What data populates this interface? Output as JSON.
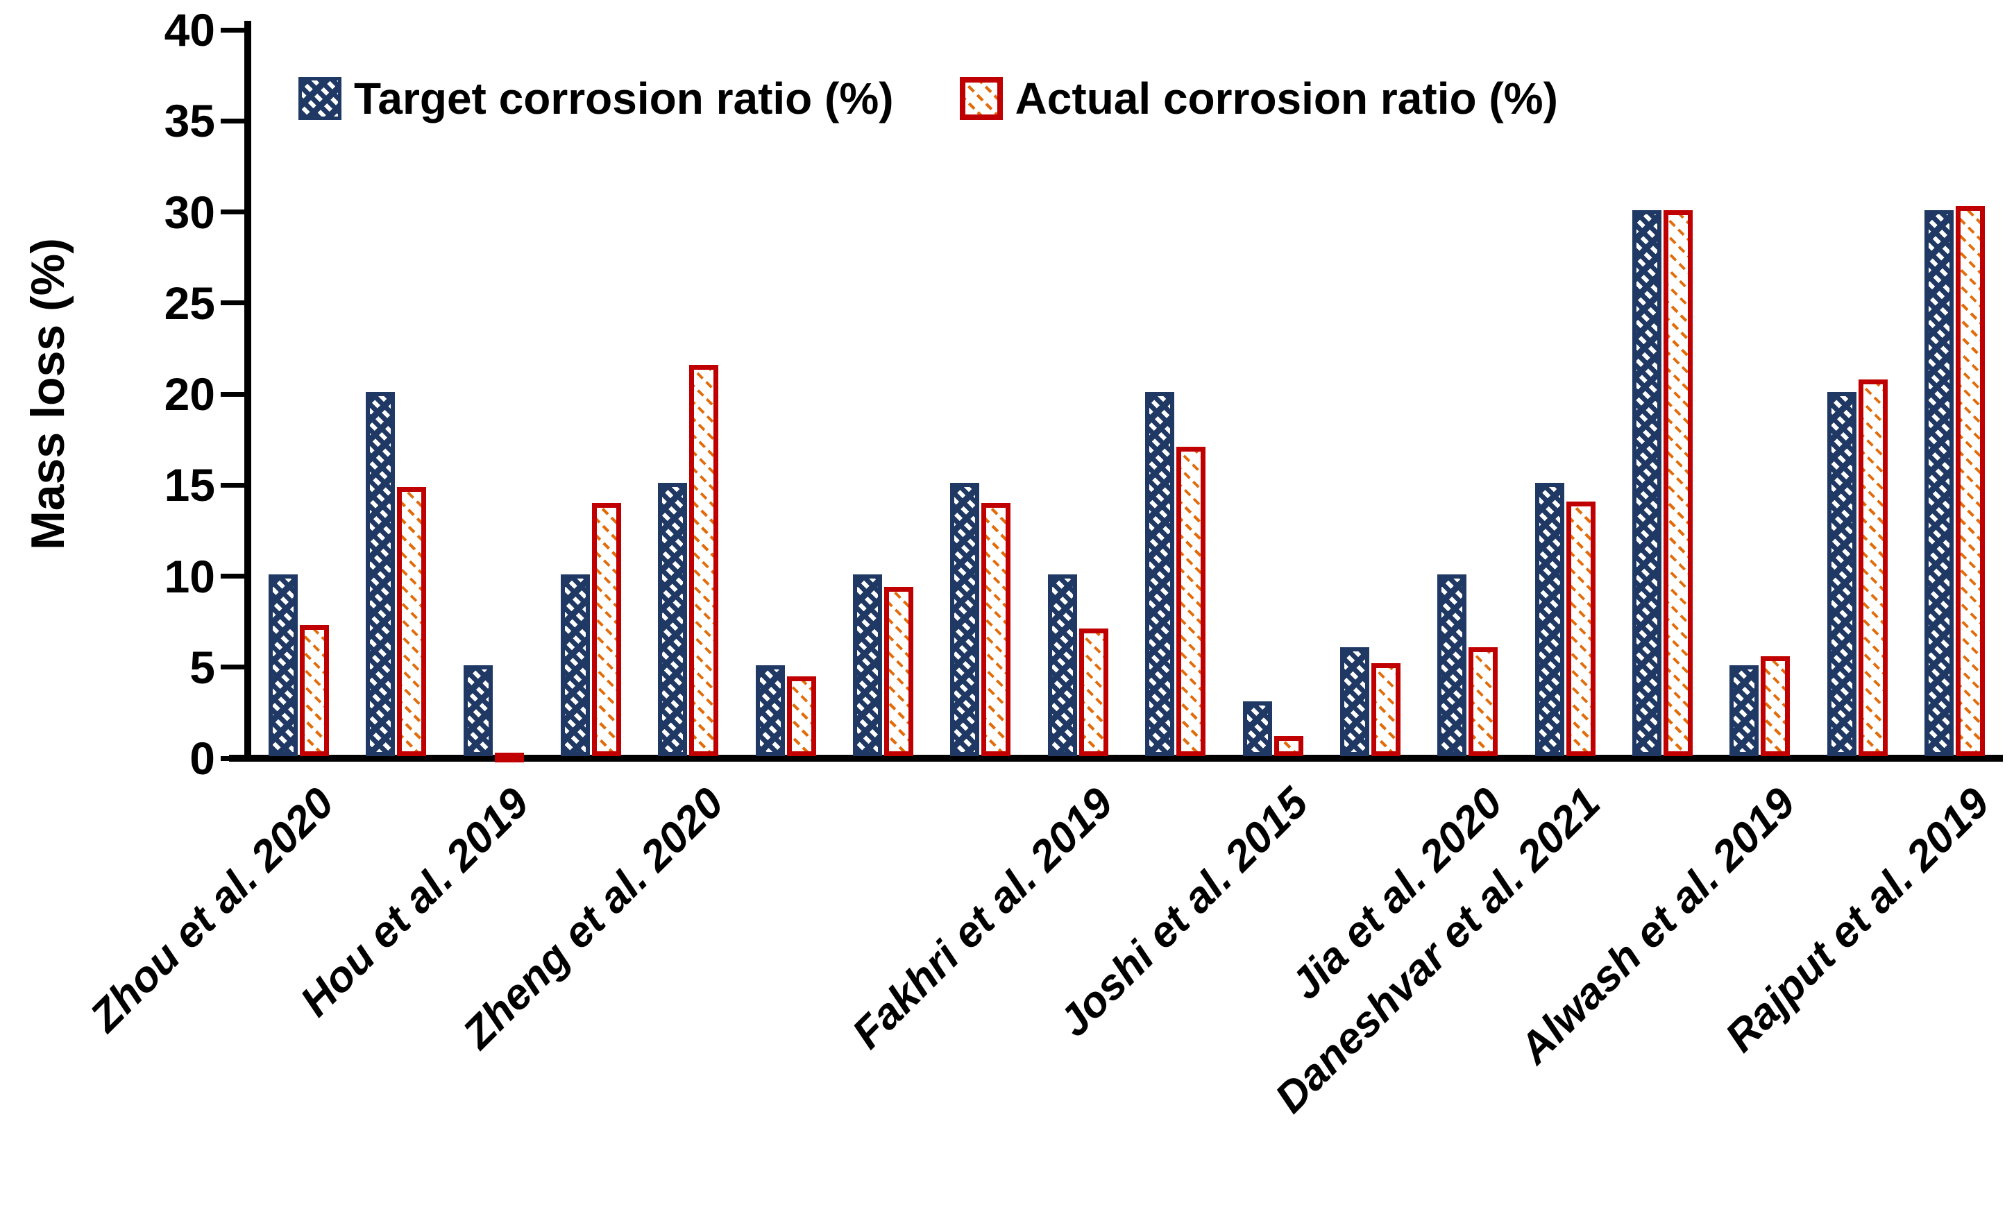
{
  "chart_data": {
    "type": "bar",
    "title": "",
    "xlabel": "",
    "ylabel": "Mass loss (%)",
    "ylim": [
      0,
      40
    ],
    "yticks": [
      0,
      5,
      10,
      15,
      20,
      25,
      30,
      35,
      40
    ],
    "grid": false,
    "legend_position": "top",
    "categories": [
      "Zhou et al. 2020",
      "",
      "Hou et al. 2019",
      "",
      "Zheng et al. 2020",
      "",
      "",
      "",
      "Fakhri et al. 2019",
      "",
      "Joshi et al. 2015",
      "",
      "Jia et al. 2020",
      "Daneshvar et al. 2021",
      "",
      "Alwash et al. 2019",
      "",
      "Rajput et al. 2019"
    ],
    "series": [
      {
        "name": "Target corrosion ratio (%)",
        "color": "#1f3864",
        "values": [
          10,
          20,
          5,
          10,
          15,
          5,
          10,
          15,
          10,
          20,
          3,
          6,
          10,
          15,
          30,
          5,
          20,
          30
        ]
      },
      {
        "name": "Actual corrosion ratio (%)",
        "color": "#c00000",
        "hatch_color": "#e36c0a",
        "values": [
          7.2,
          14.8,
          0.2,
          13.9,
          21.5,
          4.4,
          9.3,
          13.9,
          7,
          17,
          1.1,
          5.1,
          6,
          14,
          30,
          5.5,
          20.7,
          30.2
        ]
      }
    ]
  },
  "colors": {
    "target_series": "#1f3864",
    "actual_series": "#c00000",
    "actual_hatch": "#e36c0a",
    "axis": "#000000",
    "background": "#ffffff"
  }
}
